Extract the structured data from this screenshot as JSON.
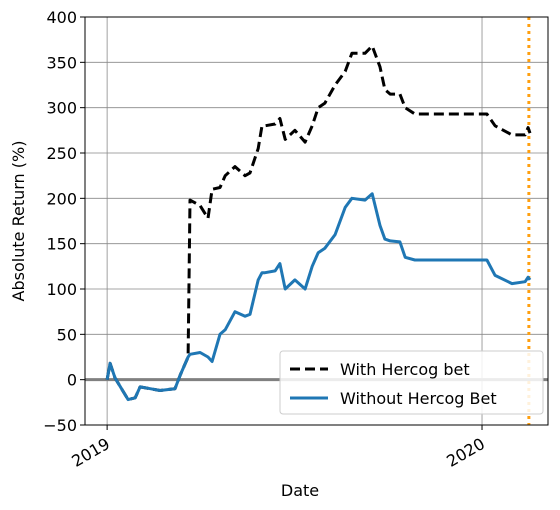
{
  "chart_data": {
    "type": "line",
    "x_label": "Date",
    "y_label": "Absolute Return (%)",
    "x": [
      2019.0,
      2019.008,
      2019.021,
      2019.056,
      2019.075,
      2019.088,
      2019.115,
      2019.141,
      2019.181,
      2019.195,
      2019.216,
      2019.221,
      2019.248,
      2019.269,
      2019.28,
      2019.301,
      2019.315,
      2019.341,
      2019.368,
      2019.381,
      2019.403,
      2019.413,
      2019.421,
      2019.448,
      2019.461,
      2019.475,
      2019.501,
      2019.528,
      2019.547,
      2019.563,
      2019.581,
      2019.608,
      2019.635,
      2019.653,
      2019.688,
      2019.707,
      2019.728,
      2019.741,
      2019.755,
      2019.781,
      2019.795,
      2019.821,
      2020.013,
      2020.035,
      2020.08,
      2020.115,
      2020.123,
      2020.128
    ],
    "series": [
      {
        "name": "With Hercog bet",
        "color": "#000000",
        "linestyle": "dashed",
        "values": [
          0,
          18,
          2,
          -22,
          -20,
          -8,
          -10,
          -12,
          -10,
          5,
          25,
          198,
          192,
          178,
          210,
          212,
          225,
          235,
          225,
          228,
          255,
          280,
          280,
          282,
          288,
          265,
          275,
          262,
          280,
          300,
          305,
          325,
          340,
          360,
          360,
          368,
          345,
          320,
          315,
          315,
          300,
          293,
          293,
          280,
          270,
          270,
          278,
          272
        ]
      },
      {
        "name": "Without Hercog Bet",
        "color": "#1f77b4",
        "linestyle": "solid",
        "values": [
          0,
          18,
          2,
          -22,
          -20,
          -8,
          -10,
          -12,
          -10,
          5,
          25,
          28,
          30,
          25,
          20,
          50,
          55,
          75,
          70,
          72,
          110,
          118,
          118,
          120,
          128,
          100,
          110,
          100,
          125,
          140,
          145,
          160,
          190,
          200,
          198,
          205,
          170,
          155,
          153,
          152,
          135,
          132,
          132,
          115,
          106,
          108,
          113,
          110
        ]
      }
    ],
    "xlim": [
      2018.941,
      2020.176
    ],
    "xticks": [
      2019,
      2020
    ],
    "ylim": [
      -50,
      400
    ],
    "yticks": [
      {
        "value": -50,
        "label": "−50"
      },
      0,
      50,
      100,
      150,
      200,
      250,
      300,
      350,
      400
    ],
    "grid": true,
    "legend": "lower right",
    "hline": {
      "value": 0,
      "color": "#808080"
    },
    "vline": {
      "value": 2020.125,
      "color": "#ff9f0f"
    }
  }
}
